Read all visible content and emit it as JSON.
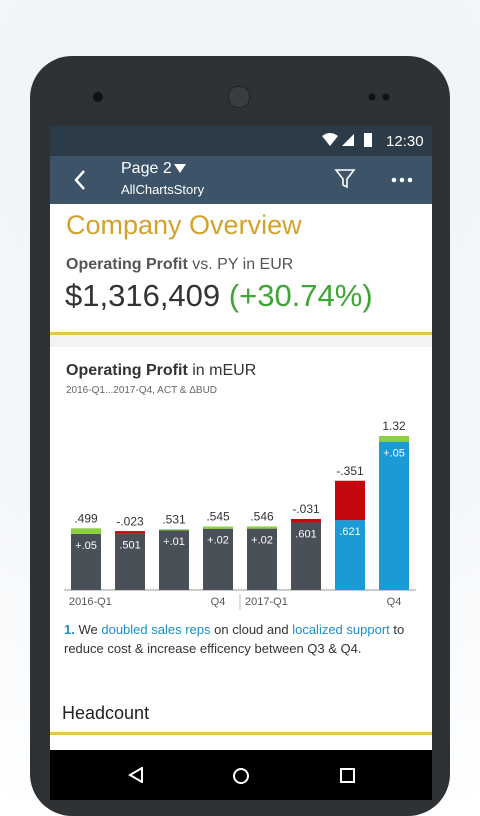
{
  "status": {
    "time": "12:30"
  },
  "appbar": {
    "title": "Page 2",
    "subtitle": "AllChartsStory"
  },
  "page_title": "Company Overview",
  "kpi": {
    "label_bold": "Operating Profit",
    "label_rest": "vs. PY",
    "label_unit": "in EUR",
    "value": "$1,316,409",
    "delta": "(+30.74%)"
  },
  "chart": {
    "type": "bar",
    "title_bold": "Operating Profit",
    "title_rest": "in mEUR",
    "subtitle": "2016-Q1...2017-Q4, ACT & ΔBUD",
    "categories": [
      "2016-Q1",
      null,
      null,
      "Q4",
      "2017-Q1",
      null,
      null,
      "Q4"
    ],
    "act": [
      0.499,
      0.501,
      0.531,
      0.545,
      0.546,
      0.601,
      0.621,
      1.32
    ],
    "act_labels": [
      ".499",
      ".501",
      ".531",
      ".545",
      ".546",
      ".601",
      ".621",
      "1.32"
    ],
    "delta": [
      0.05,
      -0.023,
      0.01,
      0.02,
      0.02,
      -0.031,
      -0.351,
      0.05
    ],
    "delta_labels": [
      "+.05",
      "-.023",
      "+.01",
      "+.02",
      "+.02",
      "-.031",
      "-.351",
      "+.05"
    ],
    "bar_colors": [
      "#4a5058",
      "#4a5058",
      "#4a5058",
      "#4a5058",
      "#4a5058",
      "#4a5058",
      "#1b9ad8",
      "#1b9ad8"
    ],
    "positive_color": "#8cd13f",
    "negative_color": "#c4060f"
  },
  "note": {
    "number": "1.",
    "t1": "We",
    "h1": "doubled sales reps",
    "t2": "on cloud and",
    "h2": "localized support",
    "t3": "to",
    "t4": "reduce cost & increase efficency between Q3 & Q4."
  },
  "section": "Headcount"
}
